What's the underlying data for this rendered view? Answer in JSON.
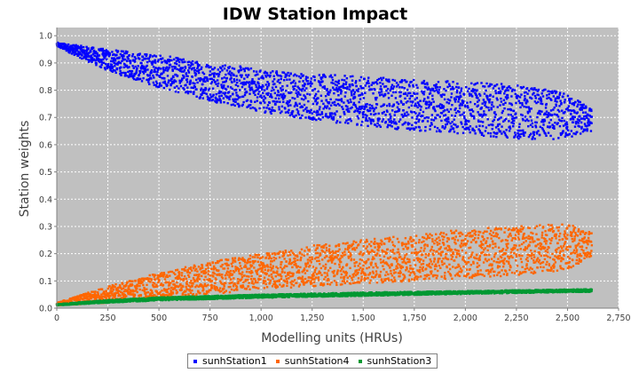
{
  "chart_data": {
    "type": "scatter",
    "title": "IDW Station Impact",
    "xlabel": "Modelling units (HRUs)",
    "ylabel": "Station weights",
    "xlim": [
      0,
      2750
    ],
    "ylim": [
      0.0,
      1.03
    ],
    "xticks": [
      "0",
      "250",
      "500",
      "750",
      "1,000",
      "1,250",
      "1,500",
      "1,750",
      "2,000",
      "2,250",
      "2,500",
      "2,750"
    ],
    "yticks": [
      "0.0",
      "0.1",
      "0.2",
      "0.3",
      "0.4",
      "0.5",
      "0.6",
      "0.7",
      "0.8",
      "0.9",
      "1.0"
    ],
    "grid": true,
    "legend_position": "bottom-center",
    "background_color": "#c0c0c0",
    "n_points_per_series": 2620,
    "series": [
      {
        "name": "sunhStation1",
        "color": "#0000ff",
        "trend_upper": [
          [
            0,
            0.975
          ],
          [
            250,
            0.95
          ],
          [
            500,
            0.93
          ],
          [
            750,
            0.9
          ],
          [
            1000,
            0.88
          ],
          [
            1250,
            0.86
          ],
          [
            1500,
            0.85
          ],
          [
            1750,
            0.84
          ],
          [
            2000,
            0.83
          ],
          [
            2250,
            0.82
          ],
          [
            2500,
            0.79
          ],
          [
            2620,
            0.73
          ]
        ],
        "trend_lower": [
          [
            0,
            0.96
          ],
          [
            250,
            0.87
          ],
          [
            500,
            0.81
          ],
          [
            750,
            0.76
          ],
          [
            1000,
            0.72
          ],
          [
            1250,
            0.69
          ],
          [
            1500,
            0.67
          ],
          [
            1750,
            0.65
          ],
          [
            2000,
            0.64
          ],
          [
            2250,
            0.62
          ],
          [
            2500,
            0.62
          ],
          [
            2620,
            0.65
          ]
        ]
      },
      {
        "name": "sunhStation4",
        "color": "#ff6600",
        "trend_upper": [
          [
            0,
            0.02
          ],
          [
            250,
            0.08
          ],
          [
            500,
            0.13
          ],
          [
            750,
            0.17
          ],
          [
            1000,
            0.2
          ],
          [
            1250,
            0.23
          ],
          [
            1500,
            0.25
          ],
          [
            1750,
            0.27
          ],
          [
            2000,
            0.29
          ],
          [
            2250,
            0.3
          ],
          [
            2500,
            0.31
          ],
          [
            2620,
            0.28
          ]
        ],
        "trend_lower": [
          [
            0,
            0.01
          ],
          [
            250,
            0.02
          ],
          [
            500,
            0.03
          ],
          [
            750,
            0.05
          ],
          [
            1000,
            0.07
          ],
          [
            1250,
            0.08
          ],
          [
            1500,
            0.09
          ],
          [
            1750,
            0.1
          ],
          [
            2000,
            0.11
          ],
          [
            2250,
            0.12
          ],
          [
            2500,
            0.14
          ],
          [
            2620,
            0.19
          ]
        ]
      },
      {
        "name": "sunhStation3",
        "color": "#009933",
        "trend_upper": [
          [
            0,
            0.015
          ],
          [
            250,
            0.03
          ],
          [
            500,
            0.04
          ],
          [
            750,
            0.045
          ],
          [
            1000,
            0.05
          ],
          [
            1500,
            0.058
          ],
          [
            2000,
            0.063
          ],
          [
            2620,
            0.07
          ]
        ],
        "trend_lower": [
          [
            0,
            0.01
          ],
          [
            250,
            0.02
          ],
          [
            500,
            0.028
          ],
          [
            750,
            0.033
          ],
          [
            1000,
            0.038
          ],
          [
            1500,
            0.045
          ],
          [
            2000,
            0.052
          ],
          [
            2620,
            0.06
          ]
        ]
      }
    ]
  }
}
